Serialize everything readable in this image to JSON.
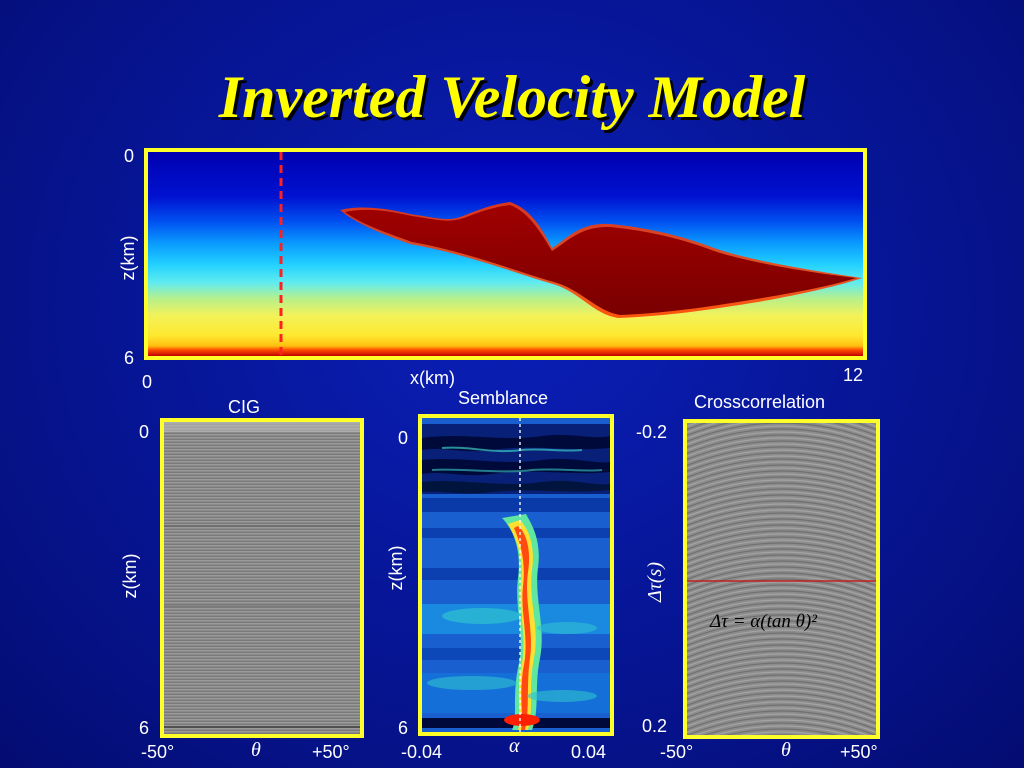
{
  "slide": {
    "title": "Inverted Velocity Model"
  },
  "velocity_panel": {
    "z_top": "0",
    "z_bottom": "6",
    "z_label": "z(km)",
    "x_left": "0",
    "x_right": "12",
    "x_label": "x(km)"
  },
  "cig_panel": {
    "title": "CIG",
    "z_top": "0",
    "z_bottom": "6",
    "z_label": "z(km)",
    "x_left": "-50°",
    "x_mid": "θ",
    "x_right": "+50°"
  },
  "semblance_panel": {
    "title": "Semblance",
    "z_top": "0",
    "z_bottom": "6",
    "z_label": "z(km)",
    "x_left": "-0.04",
    "x_mid": "α",
    "x_right": "0.04"
  },
  "crosscorrelation_panel": {
    "title": "Crosscorrelation",
    "y_top": "-0.2",
    "y_bottom": "0.2",
    "y_label": "Δτ(s)",
    "x_left": "-50°",
    "x_mid": "θ",
    "x_right": "+50°",
    "equation": "Δτ = α(tan θ)²"
  },
  "colors": {
    "frame": "#ffff2a",
    "background": "#0a1a9e",
    "title": "#ffff00",
    "salt_body": "#8a0000",
    "marker_line": "#ff2020"
  }
}
